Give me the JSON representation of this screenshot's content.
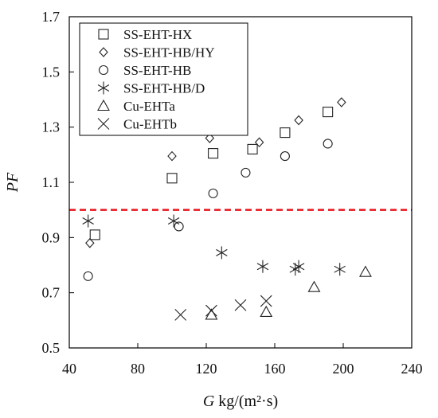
{
  "chart_data": {
    "type": "scatter",
    "xlabel": {
      "italic": "G",
      "rest": " kg/(m²·s)"
    },
    "ylabel": "PF",
    "xlim": [
      40,
      240
    ],
    "ylim": [
      0.5,
      1.7
    ],
    "xticks": [
      40,
      80,
      120,
      160,
      200,
      240
    ],
    "yticks": [
      0.5,
      0.7,
      0.9,
      1.1,
      1.3,
      1.5,
      1.7
    ],
    "grid": false,
    "legend_position": "top-left",
    "reference_line": {
      "y": 1.0,
      "color": "#e8141b",
      "style": "dashed"
    },
    "marker_color": "#222222",
    "series": [
      {
        "name": "SS-EHT-HX",
        "marker": "square",
        "points": [
          [
            55,
            0.91
          ],
          [
            100,
            1.115
          ],
          [
            124,
            1.205
          ],
          [
            147,
            1.22
          ],
          [
            166,
            1.28
          ],
          [
            191,
            1.355
          ]
        ]
      },
      {
        "name": "SS-EHT-HB/HY",
        "marker": "diamond",
        "points": [
          [
            52,
            0.88
          ],
          [
            100,
            1.195
          ],
          [
            122,
            1.26
          ],
          [
            151,
            1.245
          ],
          [
            174,
            1.325
          ],
          [
            199,
            1.39
          ]
        ]
      },
      {
        "name": "SS-EHT-HB",
        "marker": "circle",
        "points": [
          [
            51,
            0.76
          ],
          [
            104,
            0.94
          ],
          [
            124,
            1.06
          ],
          [
            143,
            1.135
          ],
          [
            166,
            1.195
          ],
          [
            191,
            1.24
          ]
        ]
      },
      {
        "name": "SS-EHT-HB/D",
        "marker": "asterisk",
        "points": [
          [
            51,
            0.96
          ],
          [
            101,
            0.96
          ],
          [
            129,
            0.845
          ],
          [
            153,
            0.795
          ],
          [
            172,
            0.785
          ],
          [
            174,
            0.795
          ],
          [
            198,
            0.785
          ]
        ]
      },
      {
        "name": "Cu-EHTa",
        "marker": "triangle",
        "points": [
          [
            123,
            0.62
          ],
          [
            155,
            0.63
          ],
          [
            183,
            0.72
          ],
          [
            213,
            0.775
          ]
        ]
      },
      {
        "name": "Cu-EHTb",
        "marker": "x",
        "points": [
          [
            105,
            0.62
          ],
          [
            123,
            0.635
          ],
          [
            140,
            0.655
          ],
          [
            155,
            0.67
          ]
        ]
      }
    ]
  }
}
